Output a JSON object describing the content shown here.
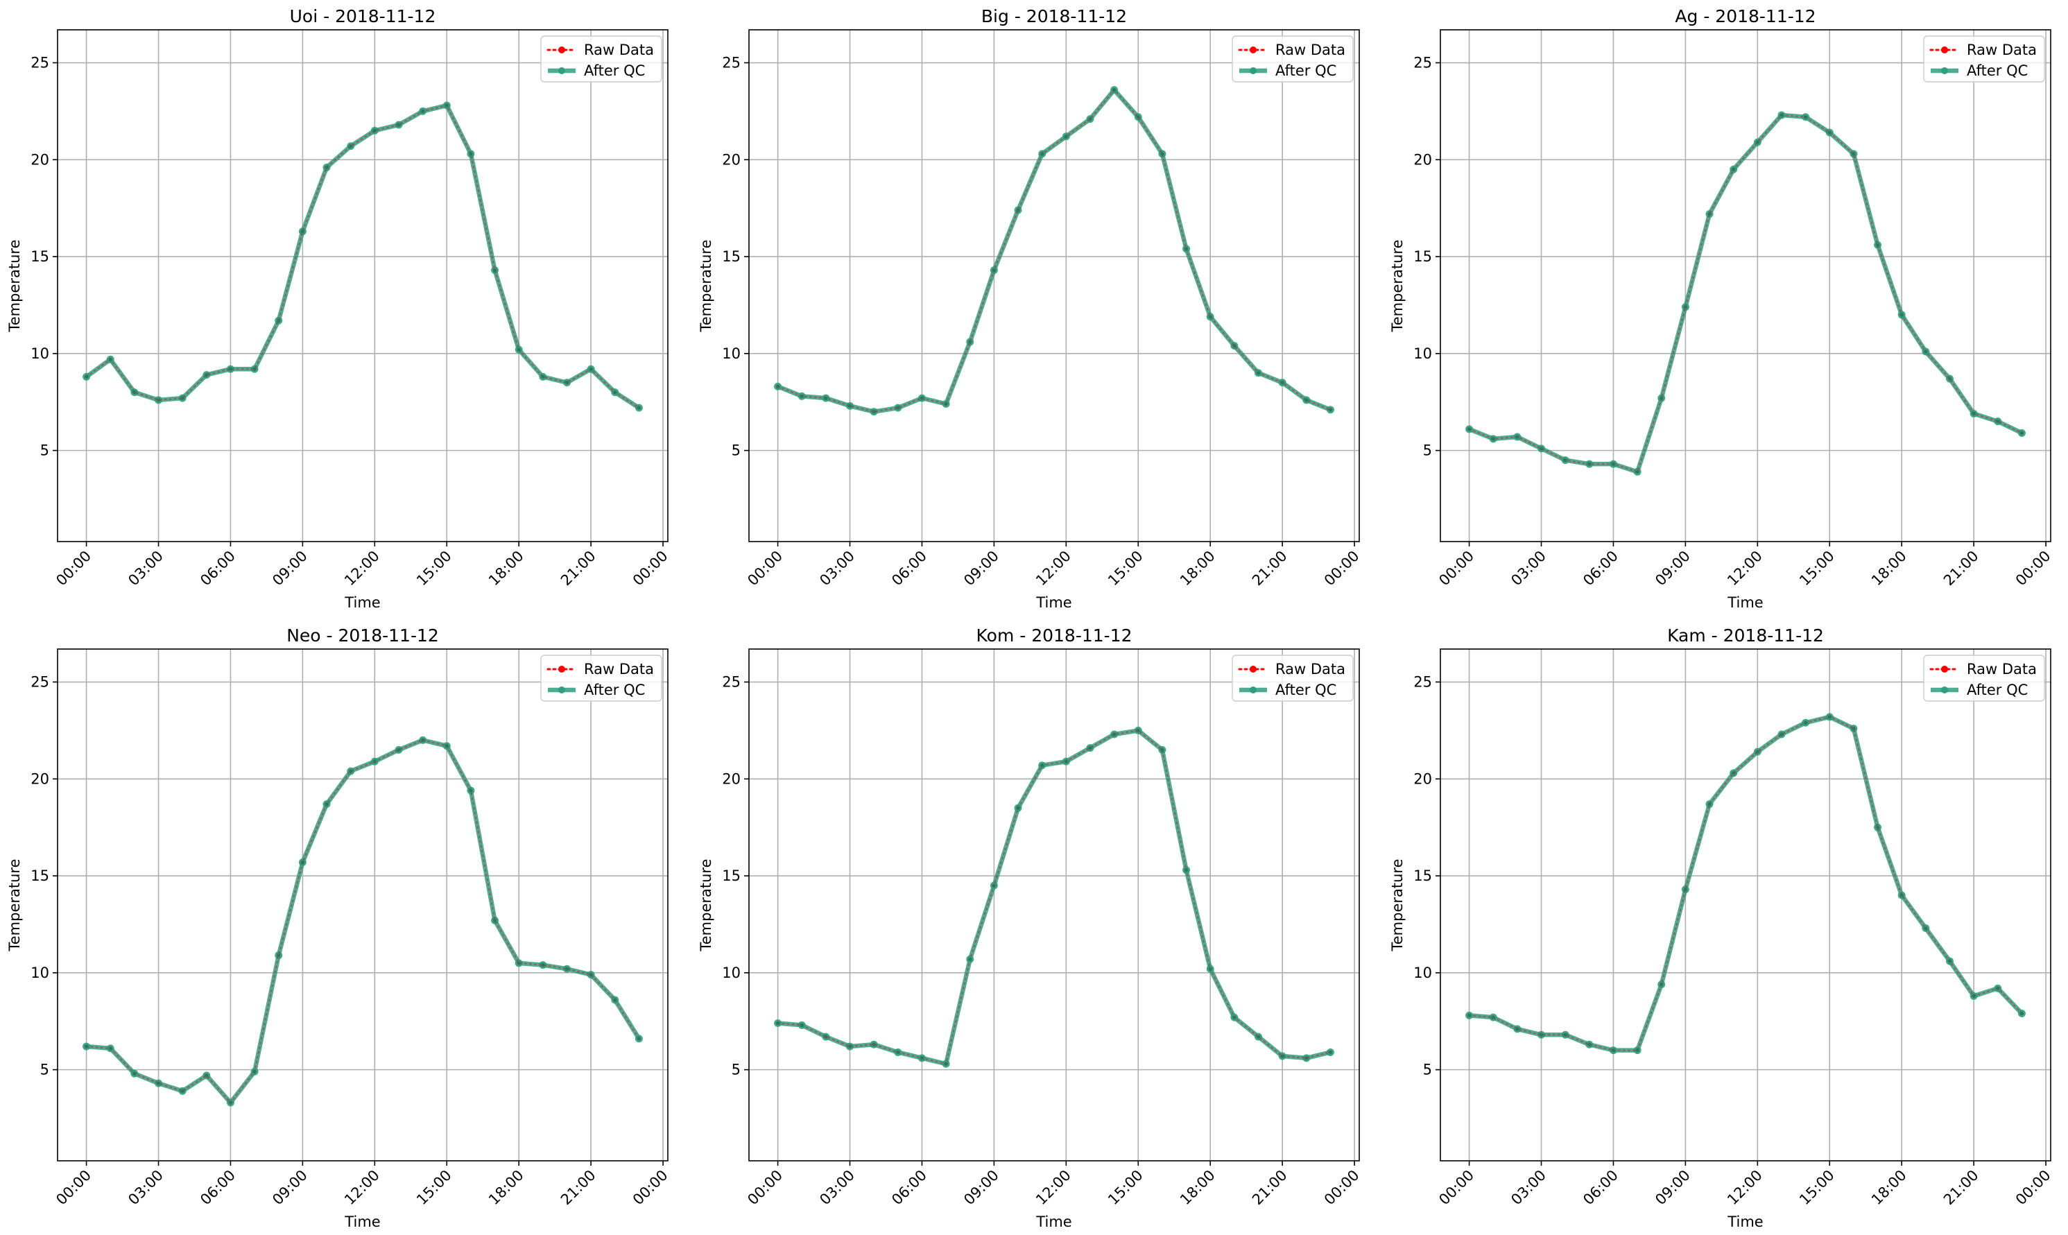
{
  "colors": {
    "raw": "#ff0000",
    "qc": "#2e9e7e",
    "grid": "#b0b0b0",
    "frame": "#000000",
    "legend_border": "#cccccc"
  },
  "legend": {
    "raw": "Raw Data",
    "qc": "After QC",
    "placement": "upper right"
  },
  "chart_data": [
    {
      "type": "line",
      "title": "Uoi - 2018-11-12",
      "xlabel": "Time",
      "ylabel": "Temperature",
      "x": [
        "00:00",
        "01:00",
        "02:00",
        "03:00",
        "04:00",
        "05:00",
        "06:00",
        "07:00",
        "08:00",
        "09:00",
        "10:00",
        "11:00",
        "12:00",
        "13:00",
        "14:00",
        "15:00",
        "16:00",
        "17:00",
        "18:00",
        "19:00",
        "20:00",
        "21:00",
        "22:00",
        "23:00"
      ],
      "xticks": [
        "00:00",
        "03:00",
        "06:00",
        "09:00",
        "12:00",
        "15:00",
        "18:00",
        "21:00",
        "00:00"
      ],
      "xlim_hours": [
        -1.2,
        24.2
      ],
      "ylim": [
        0.3,
        26.7
      ],
      "yticks": [
        5,
        10,
        15,
        20,
        25
      ],
      "grid": true,
      "legend": "top-right",
      "series": [
        {
          "name": "Raw Data",
          "values": [
            8.8,
            9.7,
            8.0,
            7.6,
            7.7,
            8.9,
            9.2,
            9.2,
            11.7,
            16.3,
            19.6,
            20.7,
            21.5,
            21.8,
            22.5,
            22.8,
            20.3,
            14.3,
            10.2,
            8.8,
            8.5,
            9.2,
            8.0,
            7.2
          ]
        },
        {
          "name": "After QC",
          "values": [
            8.8,
            9.7,
            8.0,
            7.6,
            7.7,
            8.9,
            9.2,
            9.2,
            11.7,
            16.3,
            19.6,
            20.7,
            21.5,
            21.8,
            22.5,
            22.8,
            20.3,
            14.3,
            10.2,
            8.8,
            8.5,
            9.2,
            8.0,
            7.2
          ]
        }
      ]
    },
    {
      "type": "line",
      "title": "Big - 2018-11-12",
      "xlabel": "Time",
      "ylabel": "Temperature",
      "x": [
        "00:00",
        "01:00",
        "02:00",
        "03:00",
        "04:00",
        "05:00",
        "06:00",
        "07:00",
        "08:00",
        "09:00",
        "10:00",
        "11:00",
        "12:00",
        "13:00",
        "14:00",
        "15:00",
        "16:00",
        "17:00",
        "18:00",
        "19:00",
        "20:00",
        "21:00",
        "22:00",
        "23:00"
      ],
      "xticks": [
        "00:00",
        "03:00",
        "06:00",
        "09:00",
        "12:00",
        "15:00",
        "18:00",
        "21:00",
        "00:00"
      ],
      "xlim_hours": [
        -1.2,
        24.2
      ],
      "ylim": [
        0.3,
        26.7
      ],
      "yticks": [
        5,
        10,
        15,
        20,
        25
      ],
      "grid": true,
      "legend": "top-right",
      "series": [
        {
          "name": "Raw Data",
          "values": [
            8.3,
            7.8,
            7.7,
            7.3,
            7.0,
            7.2,
            7.7,
            7.4,
            10.6,
            14.3,
            17.4,
            20.3,
            21.2,
            22.1,
            23.6,
            22.2,
            20.3,
            15.4,
            11.9,
            10.4,
            9.0,
            8.5,
            7.6,
            7.1
          ]
        },
        {
          "name": "After QC",
          "values": [
            8.3,
            7.8,
            7.7,
            7.3,
            7.0,
            7.2,
            7.7,
            7.4,
            10.6,
            14.3,
            17.4,
            20.3,
            21.2,
            22.1,
            23.6,
            22.2,
            20.3,
            15.4,
            11.9,
            10.4,
            9.0,
            8.5,
            7.6,
            7.1
          ]
        }
      ]
    },
    {
      "type": "line",
      "title": "Ag - 2018-11-12",
      "xlabel": "Time",
      "ylabel": "Temperature",
      "x": [
        "00:00",
        "01:00",
        "02:00",
        "03:00",
        "04:00",
        "05:00",
        "06:00",
        "07:00",
        "08:00",
        "09:00",
        "10:00",
        "11:00",
        "12:00",
        "13:00",
        "14:00",
        "15:00",
        "16:00",
        "17:00",
        "18:00",
        "19:00",
        "20:00",
        "21:00",
        "22:00",
        "23:00"
      ],
      "xticks": [
        "00:00",
        "03:00",
        "06:00",
        "09:00",
        "12:00",
        "15:00",
        "18:00",
        "21:00",
        "00:00"
      ],
      "xlim_hours": [
        -1.2,
        24.2
      ],
      "ylim": [
        0.3,
        26.7
      ],
      "yticks": [
        5,
        10,
        15,
        20,
        25
      ],
      "grid": true,
      "legend": "top-right",
      "series": [
        {
          "name": "Raw Data",
          "values": [
            6.1,
            5.6,
            5.7,
            5.1,
            4.5,
            4.3,
            4.3,
            3.9,
            7.7,
            12.4,
            17.2,
            19.5,
            20.9,
            22.3,
            22.2,
            21.4,
            20.3,
            15.6,
            12.0,
            10.1,
            8.7,
            6.9,
            6.5,
            5.9
          ]
        },
        {
          "name": "After QC",
          "values": [
            6.1,
            5.6,
            5.7,
            5.1,
            4.5,
            4.3,
            4.3,
            3.9,
            7.7,
            12.4,
            17.2,
            19.5,
            20.9,
            22.3,
            22.2,
            21.4,
            20.3,
            15.6,
            12.0,
            10.1,
            8.7,
            6.9,
            6.5,
            5.9
          ]
        }
      ]
    },
    {
      "type": "line",
      "title": "Neo - 2018-11-12",
      "xlabel": "Time",
      "ylabel": "Temperature",
      "x": [
        "00:00",
        "01:00",
        "02:00",
        "03:00",
        "04:00",
        "05:00",
        "06:00",
        "07:00",
        "08:00",
        "09:00",
        "10:00",
        "11:00",
        "12:00",
        "13:00",
        "14:00",
        "15:00",
        "16:00",
        "17:00",
        "18:00",
        "19:00",
        "20:00",
        "21:00",
        "22:00",
        "23:00"
      ],
      "xticks": [
        "00:00",
        "03:00",
        "06:00",
        "09:00",
        "12:00",
        "15:00",
        "18:00",
        "21:00",
        "00:00"
      ],
      "xlim_hours": [
        -1.2,
        24.2
      ],
      "ylim": [
        0.3,
        26.7
      ],
      "yticks": [
        5,
        10,
        15,
        20,
        25
      ],
      "grid": true,
      "legend": "top-right",
      "series": [
        {
          "name": "Raw Data",
          "values": [
            6.2,
            6.1,
            4.8,
            4.3,
            3.9,
            4.7,
            3.3,
            4.9,
            10.9,
            15.7,
            18.7,
            20.4,
            20.9,
            21.5,
            22.0,
            21.7,
            19.4,
            12.7,
            10.5,
            10.4,
            10.2,
            9.9,
            8.6,
            6.6
          ]
        },
        {
          "name": "After QC",
          "values": [
            6.2,
            6.1,
            4.8,
            4.3,
            3.9,
            4.7,
            3.3,
            4.9,
            10.9,
            15.7,
            18.7,
            20.4,
            20.9,
            21.5,
            22.0,
            21.7,
            19.4,
            12.7,
            10.5,
            10.4,
            10.2,
            9.9,
            8.6,
            6.6
          ]
        }
      ]
    },
    {
      "type": "line",
      "title": "Kom - 2018-11-12",
      "xlabel": "Time",
      "ylabel": "Temperature",
      "x": [
        "00:00",
        "01:00",
        "02:00",
        "03:00",
        "04:00",
        "05:00",
        "06:00",
        "07:00",
        "08:00",
        "09:00",
        "10:00",
        "11:00",
        "12:00",
        "13:00",
        "14:00",
        "15:00",
        "16:00",
        "17:00",
        "18:00",
        "19:00",
        "20:00",
        "21:00",
        "22:00",
        "23:00"
      ],
      "xticks": [
        "00:00",
        "03:00",
        "06:00",
        "09:00",
        "12:00",
        "15:00",
        "18:00",
        "21:00",
        "00:00"
      ],
      "xlim_hours": [
        -1.2,
        24.2
      ],
      "ylim": [
        0.3,
        26.7
      ],
      "yticks": [
        5,
        10,
        15,
        20,
        25
      ],
      "grid": true,
      "legend": "top-right",
      "series": [
        {
          "name": "Raw Data",
          "values": [
            7.4,
            7.3,
            6.7,
            6.2,
            6.3,
            5.9,
            5.6,
            5.3,
            10.7,
            14.5,
            18.5,
            20.7,
            20.9,
            21.6,
            22.3,
            22.5,
            21.5,
            15.3,
            10.2,
            7.7,
            6.7,
            5.7,
            5.6,
            5.9
          ]
        },
        {
          "name": "After QC",
          "values": [
            7.4,
            7.3,
            6.7,
            6.2,
            6.3,
            5.9,
            5.6,
            5.3,
            10.7,
            14.5,
            18.5,
            20.7,
            20.9,
            21.6,
            22.3,
            22.5,
            21.5,
            15.3,
            10.2,
            7.7,
            6.7,
            5.7,
            5.6,
            5.9
          ]
        }
      ]
    },
    {
      "type": "line",
      "title": "Kam - 2018-11-12",
      "xlabel": "Time",
      "ylabel": "Temperature",
      "x": [
        "00:00",
        "01:00",
        "02:00",
        "03:00",
        "04:00",
        "05:00",
        "06:00",
        "07:00",
        "08:00",
        "09:00",
        "10:00",
        "11:00",
        "12:00",
        "13:00",
        "14:00",
        "15:00",
        "16:00",
        "17:00",
        "18:00",
        "19:00",
        "20:00",
        "21:00",
        "22:00",
        "23:00"
      ],
      "xticks": [
        "00:00",
        "03:00",
        "06:00",
        "09:00",
        "12:00",
        "15:00",
        "18:00",
        "21:00",
        "00:00"
      ],
      "xlim_hours": [
        -1.2,
        24.2
      ],
      "ylim": [
        0.3,
        26.7
      ],
      "yticks": [
        5,
        10,
        15,
        20,
        25
      ],
      "grid": true,
      "legend": "top-right",
      "series": [
        {
          "name": "Raw Data",
          "values": [
            7.8,
            7.7,
            7.1,
            6.8,
            6.8,
            6.3,
            6.0,
            6.0,
            9.4,
            14.3,
            18.7,
            20.3,
            21.4,
            22.3,
            22.9,
            23.2,
            22.6,
            17.5,
            14.0,
            12.3,
            10.6,
            8.8,
            9.2,
            7.9
          ]
        },
        {
          "name": "After QC",
          "values": [
            7.8,
            7.7,
            7.1,
            6.8,
            6.8,
            6.3,
            6.0,
            6.0,
            9.4,
            14.3,
            18.7,
            20.3,
            21.4,
            22.3,
            22.9,
            23.2,
            22.6,
            17.5,
            14.0,
            12.3,
            10.6,
            8.8,
            9.2,
            7.9
          ]
        }
      ]
    }
  ]
}
